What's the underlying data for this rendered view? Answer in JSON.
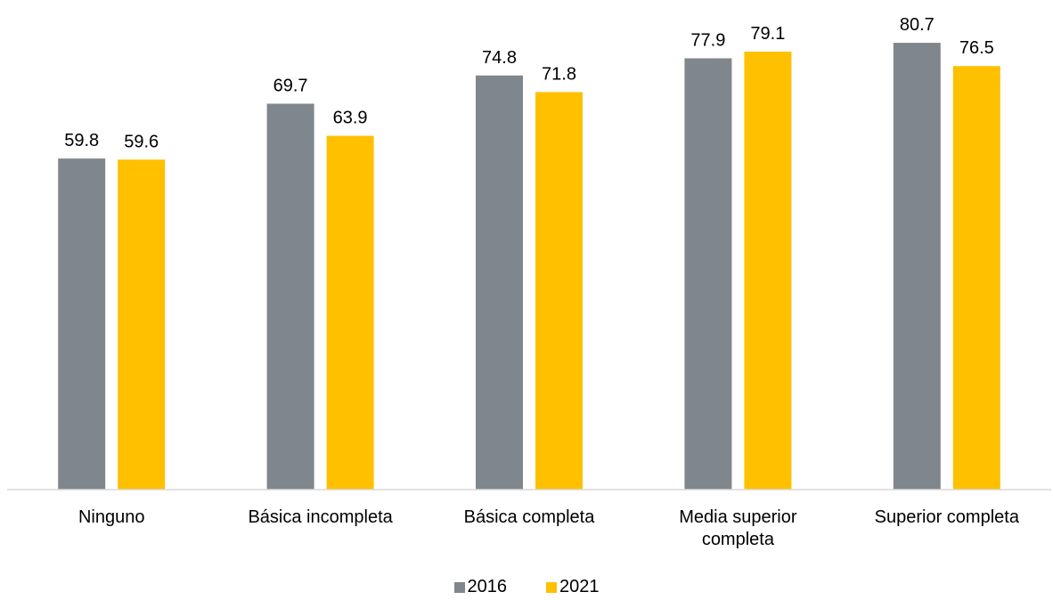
{
  "chart_data": {
    "type": "bar",
    "categories": [
      [
        "Ninguno"
      ],
      [
        "Básica incompleta"
      ],
      [
        "Básica completa"
      ],
      [
        "Media superior",
        "completa"
      ],
      [
        "Superior completa"
      ]
    ],
    "series": [
      {
        "name": "2016",
        "color": "#7f878d",
        "values": [
          59.8,
          69.7,
          74.8,
          77.9,
          80.7
        ]
      },
      {
        "name": "2021",
        "color": "#ffc000",
        "values": [
          59.6,
          63.9,
          71.8,
          79.1,
          76.5
        ]
      }
    ],
    "ylim": [
      0,
      82
    ],
    "grid": false,
    "data_labels": true,
    "legend_position": "bottom",
    "title": "",
    "xlabel": "",
    "ylabel": ""
  }
}
